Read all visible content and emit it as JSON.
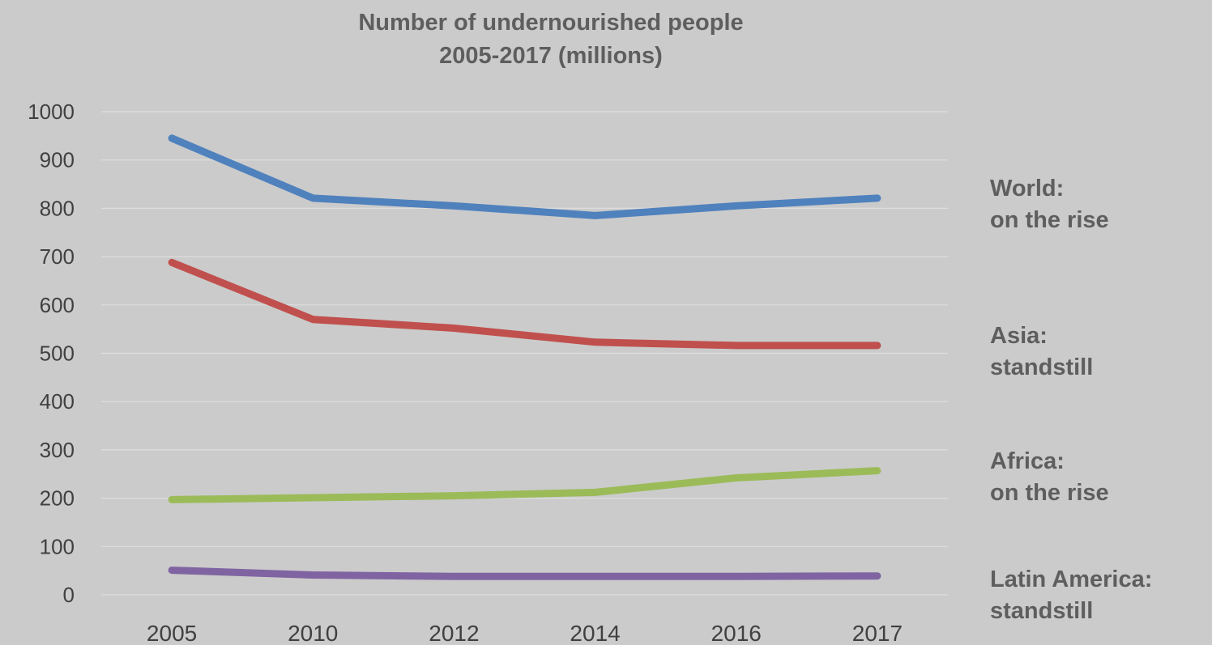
{
  "chart_data": {
    "type": "line",
    "title_lines": [
      "Number of undernourished people",
      "2005-2017 (millions)"
    ],
    "categories": [
      "2005",
      "2010",
      "2012",
      "2014",
      "2016",
      "2017"
    ],
    "y_ticks": [
      "0",
      "100",
      "200",
      "300",
      "400",
      "500",
      "600",
      "700",
      "800",
      "900",
      "1000"
    ],
    "ylim": [
      0,
      1000
    ],
    "grid": true,
    "legend": "none",
    "series": [
      {
        "values": [
          945,
          821,
          805,
          785,
          805,
          821
        ],
        "color": "#4f81bd"
      },
      {
        "values": [
          688,
          570,
          552,
          523,
          516,
          516
        ],
        "color": "#c0504d"
      },
      {
        "values": [
          197,
          201,
          205,
          212,
          242,
          257
        ],
        "color": "#9bbb59"
      },
      {
        "values": [
          51,
          41,
          38,
          38,
          38,
          39
        ],
        "color": "#8064a2"
      }
    ],
    "annotations": [
      {
        "line1": "World:",
        "line2": "on the rise"
      },
      {
        "line1": "Asia:",
        "line2": "standstill"
      },
      {
        "line1": "Africa:",
        "line2": "on the rise"
      },
      {
        "line1": "Latin America:",
        "line2": "standstill"
      }
    ]
  }
}
